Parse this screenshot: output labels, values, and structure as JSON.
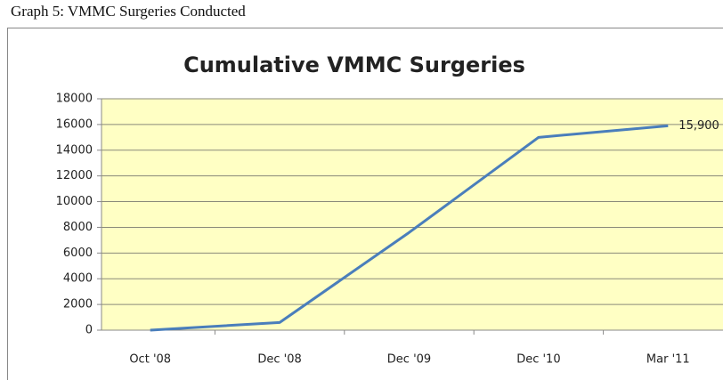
{
  "chart_data": {
    "type": "line",
    "caption": "Graph 5: VMMC Surgeries Conducted",
    "title": "Cumulative VMMC Surgeries",
    "categories": [
      "Oct '08",
      "Dec '08",
      "Dec '09",
      "Dec '10",
      "Mar '11"
    ],
    "series": [
      {
        "name": "Cumulative VMMC Surgeries",
        "color": "#4a7ebb",
        "values": [
          0,
          600,
          7600,
          15000,
          15900
        ],
        "value_labels": [
          null,
          null,
          null,
          null,
          "15,900"
        ]
      }
    ],
    "ylim": [
      0,
      18000
    ],
    "yticks": [
      0,
      2000,
      4000,
      6000,
      8000,
      10000,
      12000,
      14000,
      16000,
      18000
    ],
    "grid": true,
    "plot_background": "#ffffc4"
  }
}
